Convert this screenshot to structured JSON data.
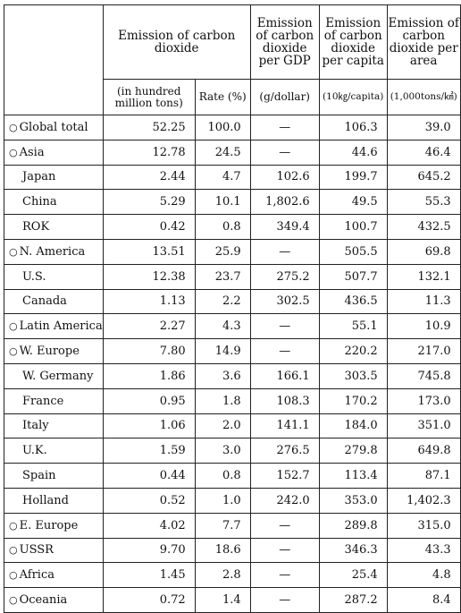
{
  "table": {
    "headers": {
      "emission": "Emission of carbon dioxide",
      "per_gdp": "Emission of carbon dioxide per GDP",
      "per_capita": "Emission of carbon dioxide per capita",
      "per_area": "Emission of carbon dioxide per area",
      "sub_amount": "(in hundred million tons)",
      "sub_rate": "Rate (%)",
      "sub_gdp": "(g/dollar)",
      "sub_capita": "(10㎏/capita)",
      "sub_area": "(1,000tons/㎢)"
    },
    "marker": "○",
    "rows": [
      {
        "region": "Global total",
        "amount": "52.25",
        "rate": "100.0",
        "gdp": "—",
        "capita": "106.3",
        "area": "39.0",
        "group": true
      },
      {
        "region": "Asia",
        "amount": "12.78",
        "rate": "24.5",
        "gdp": "—",
        "capita": "44.6",
        "area": "46.4",
        "group": true
      },
      {
        "region": "Japan",
        "amount": "2.44",
        "rate": "4.7",
        "gdp": "102.6",
        "capita": "199.7",
        "area": "645.2",
        "group": false
      },
      {
        "region": "China",
        "amount": "5.29",
        "rate": "10.1",
        "gdp": "1,802.6",
        "capita": "49.5",
        "area": "55.3",
        "group": false
      },
      {
        "region": "ROK",
        "amount": "0.42",
        "rate": "0.8",
        "gdp": "349.4",
        "capita": "100.7",
        "area": "432.5",
        "group": false
      },
      {
        "region": "N. America",
        "amount": "13.51",
        "rate": "25.9",
        "gdp": "—",
        "capita": "505.5",
        "area": "69.8",
        "group": true
      },
      {
        "region": "U.S.",
        "amount": "12.38",
        "rate": "23.7",
        "gdp": "275.2",
        "capita": "507.7",
        "area": "132.1",
        "group": false
      },
      {
        "region": "Canada",
        "amount": "1.13",
        "rate": "2.2",
        "gdp": "302.5",
        "capita": "436.5",
        "area": "11.3",
        "group": false
      },
      {
        "region": "Latin America",
        "amount": "2.27",
        "rate": "4.3",
        "gdp": "—",
        "capita": "55.1",
        "area": "10.9",
        "group": true
      },
      {
        "region": "W. Europe",
        "amount": "7.80",
        "rate": "14.9",
        "gdp": "—",
        "capita": "220.2",
        "area": "217.0",
        "group": true
      },
      {
        "region": "W. Germany",
        "amount": "1.86",
        "rate": "3.6",
        "gdp": "166.1",
        "capita": "303.5",
        "area": "745.8",
        "group": false
      },
      {
        "region": "France",
        "amount": "0.95",
        "rate": "1.8",
        "gdp": "108.3",
        "capita": "170.2",
        "area": "173.0",
        "group": false
      },
      {
        "region": "Italy",
        "amount": "1.06",
        "rate": "2.0",
        "gdp": "141.1",
        "capita": "184.0",
        "area": "351.0",
        "group": false
      },
      {
        "region": "U.K.",
        "amount": "1.59",
        "rate": "3.0",
        "gdp": "276.5",
        "capita": "279.8",
        "area": "649.8",
        "group": false
      },
      {
        "region": "Spain",
        "amount": "0.44",
        "rate": "0.8",
        "gdp": "152.7",
        "capita": "113.4",
        "area": "87.1",
        "group": false
      },
      {
        "region": "Holland",
        "amount": "0.52",
        "rate": "1.0",
        "gdp": "242.0",
        "capita": "353.0",
        "area": "1,402.3",
        "group": false
      },
      {
        "region": "E. Europe",
        "amount": "4.02",
        "rate": "7.7",
        "gdp": "—",
        "capita": "289.8",
        "area": "315.0",
        "group": true
      },
      {
        "region": "USSR",
        "amount": "9.70",
        "rate": "18.6",
        "gdp": "—",
        "capita": "346.3",
        "area": "43.3",
        "group": true
      },
      {
        "region": "Africa",
        "amount": "1.45",
        "rate": "2.8",
        "gdp": "—",
        "capita": "25.4",
        "area": "4.8",
        "group": true
      },
      {
        "region": "Oceania",
        "amount": "0.72",
        "rate": "1.4",
        "gdp": "—",
        "capita": "287.2",
        "area": "8.4",
        "group": true
      }
    ]
  }
}
